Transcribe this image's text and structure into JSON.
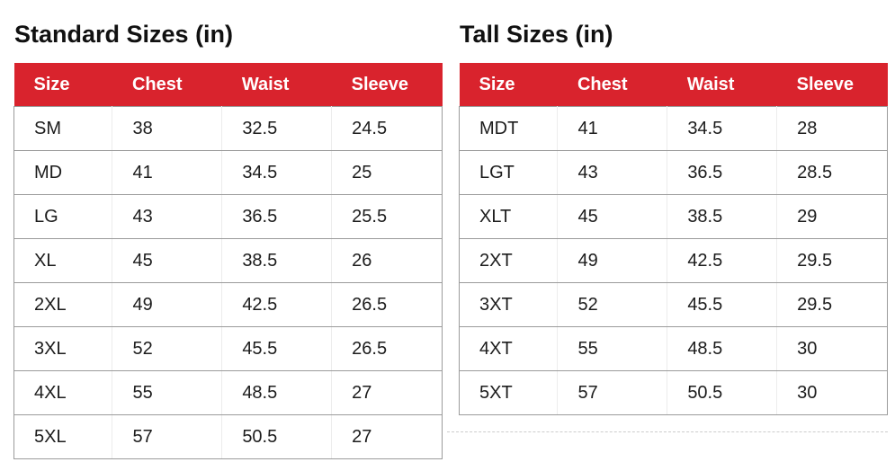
{
  "colors": {
    "header_bg": "#d9232d",
    "header_text": "#ffffff",
    "body_text": "#1c1c1c",
    "title_text": "#111111",
    "row_border": "#9b9b9b",
    "col_border": "#ececec",
    "divider": "#cccccc",
    "page_bg": "#ffffff"
  },
  "chart_data": [
    {
      "type": "table",
      "title": "Standard Sizes (in)",
      "columns": [
        "Size",
        "Chest",
        "Waist",
        "Sleeve"
      ],
      "rows": [
        [
          "SM",
          "38",
          "32.5",
          "24.5"
        ],
        [
          "MD",
          "41",
          "34.5",
          "25"
        ],
        [
          "LG",
          "43",
          "36.5",
          "25.5"
        ],
        [
          "XL",
          "45",
          "38.5",
          "26"
        ],
        [
          "2XL",
          "49",
          "42.5",
          "26.5"
        ],
        [
          "3XL",
          "52",
          "45.5",
          "26.5"
        ],
        [
          "4XL",
          "55",
          "48.5",
          "27"
        ],
        [
          "5XL",
          "57",
          "50.5",
          "27"
        ]
      ]
    },
    {
      "type": "table",
      "title": "Tall Sizes (in)",
      "columns": [
        "Size",
        "Chest",
        "Waist",
        "Sleeve"
      ],
      "rows": [
        [
          "MDT",
          "41",
          "34.5",
          "28"
        ],
        [
          "LGT",
          "43",
          "36.5",
          "28.5"
        ],
        [
          "XLT",
          "45",
          "38.5",
          "29"
        ],
        [
          "2XT",
          "49",
          "42.5",
          "29.5"
        ],
        [
          "3XT",
          "52",
          "45.5",
          "29.5"
        ],
        [
          "4XT",
          "55",
          "48.5",
          "30"
        ],
        [
          "5XT",
          "57",
          "50.5",
          "30"
        ]
      ]
    }
  ]
}
